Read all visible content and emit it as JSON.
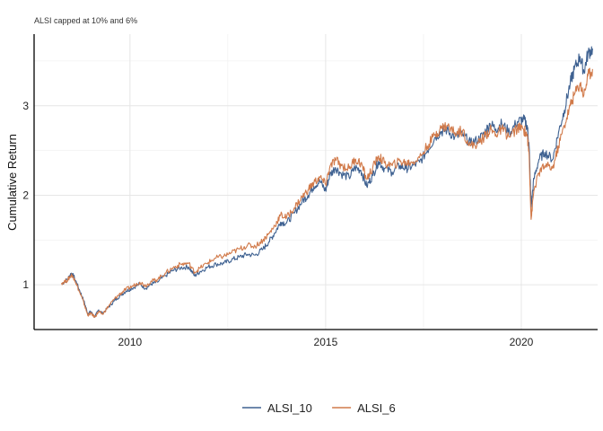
{
  "chart_data": {
    "type": "line",
    "title": "",
    "subtitle": "ALSI capped at 10% and 6%",
    "xlabel": "",
    "ylabel": "Cumulative Return",
    "xlim": [
      2007.55,
      2021.95
    ],
    "ylim": [
      0.5,
      3.8
    ],
    "x_ticks": [
      2010,
      2015,
      2020
    ],
    "x_tick_labels": [
      "2010",
      "2015",
      "2020"
    ],
    "y_ticks": [
      1,
      2,
      3
    ],
    "y_tick_labels": [
      "1",
      "2",
      "3"
    ],
    "grid": true,
    "legend_position": "bottom",
    "series": [
      {
        "name": "ALSI_10",
        "color": "#3e6191",
        "points": [
          [
            2008.25,
            1.01
          ],
          [
            2008.4,
            1.06
          ],
          [
            2008.5,
            1.13
          ],
          [
            2008.58,
            1.08
          ],
          [
            2008.7,
            0.95
          ],
          [
            2008.82,
            0.82
          ],
          [
            2008.92,
            0.68
          ],
          [
            2009.0,
            0.7
          ],
          [
            2009.1,
            0.64
          ],
          [
            2009.2,
            0.72
          ],
          [
            2009.3,
            0.68
          ],
          [
            2009.45,
            0.75
          ],
          [
            2009.6,
            0.82
          ],
          [
            2009.75,
            0.88
          ],
          [
            2009.9,
            0.93
          ],
          [
            2010.05,
            0.96
          ],
          [
            2010.25,
            1.01
          ],
          [
            2010.4,
            0.96
          ],
          [
            2010.55,
            1.01
          ],
          [
            2010.7,
            1.03
          ],
          [
            2010.9,
            1.1
          ],
          [
            2011.1,
            1.16
          ],
          [
            2011.3,
            1.19
          ],
          [
            2011.5,
            1.2
          ],
          [
            2011.65,
            1.1
          ],
          [
            2011.8,
            1.15
          ],
          [
            2012.0,
            1.2
          ],
          [
            2012.2,
            1.23
          ],
          [
            2012.4,
            1.24
          ],
          [
            2012.6,
            1.28
          ],
          [
            2012.8,
            1.31
          ],
          [
            2013.0,
            1.34
          ],
          [
            2013.2,
            1.33
          ],
          [
            2013.4,
            1.4
          ],
          [
            2013.55,
            1.48
          ],
          [
            2013.7,
            1.58
          ],
          [
            2013.85,
            1.7
          ],
          [
            2014.0,
            1.69
          ],
          [
            2014.2,
            1.8
          ],
          [
            2014.4,
            1.93
          ],
          [
            2014.55,
            2.0
          ],
          [
            2014.7,
            2.1
          ],
          [
            2014.85,
            2.16
          ],
          [
            2015.0,
            2.05
          ],
          [
            2015.1,
            2.22
          ],
          [
            2015.25,
            2.31
          ],
          [
            2015.4,
            2.24
          ],
          [
            2015.6,
            2.2
          ],
          [
            2015.75,
            2.31
          ],
          [
            2015.9,
            2.28
          ],
          [
            2016.05,
            2.1
          ],
          [
            2016.2,
            2.22
          ],
          [
            2016.35,
            2.38
          ],
          [
            2016.5,
            2.3
          ],
          [
            2016.7,
            2.26
          ],
          [
            2016.9,
            2.33
          ],
          [
            2017.05,
            2.3
          ],
          [
            2017.2,
            2.32
          ],
          [
            2017.4,
            2.37
          ],
          [
            2017.6,
            2.5
          ],
          [
            2017.8,
            2.65
          ],
          [
            2017.95,
            2.71
          ],
          [
            2018.1,
            2.73
          ],
          [
            2018.3,
            2.65
          ],
          [
            2018.5,
            2.68
          ],
          [
            2018.7,
            2.58
          ],
          [
            2018.9,
            2.62
          ],
          [
            2019.05,
            2.69
          ],
          [
            2019.2,
            2.8
          ],
          [
            2019.35,
            2.74
          ],
          [
            2019.5,
            2.8
          ],
          [
            2019.7,
            2.7
          ],
          [
            2019.9,
            2.82
          ],
          [
            2020.05,
            2.85
          ],
          [
            2020.15,
            2.78
          ],
          [
            2020.2,
            2.55
          ],
          [
            2020.25,
            1.87
          ],
          [
            2020.32,
            2.18
          ],
          [
            2020.45,
            2.4
          ],
          [
            2020.6,
            2.48
          ],
          [
            2020.8,
            2.4
          ],
          [
            2020.95,
            2.7
          ],
          [
            2021.1,
            2.95
          ],
          [
            2021.25,
            3.25
          ],
          [
            2021.35,
            3.4
          ],
          [
            2021.5,
            3.55
          ],
          [
            2021.6,
            3.38
          ],
          [
            2021.7,
            3.58
          ],
          [
            2021.82,
            3.64
          ]
        ]
      },
      {
        "name": "ALSI_6",
        "color": "#d17a4a",
        "points": [
          [
            2008.25,
            1.02
          ],
          [
            2008.4,
            1.05
          ],
          [
            2008.5,
            1.11
          ],
          [
            2008.58,
            1.07
          ],
          [
            2008.7,
            0.93
          ],
          [
            2008.82,
            0.8
          ],
          [
            2008.92,
            0.66
          ],
          [
            2009.0,
            0.68
          ],
          [
            2009.1,
            0.64
          ],
          [
            2009.2,
            0.7
          ],
          [
            2009.3,
            0.67
          ],
          [
            2009.45,
            0.76
          ],
          [
            2009.6,
            0.84
          ],
          [
            2009.75,
            0.9
          ],
          [
            2009.9,
            0.95
          ],
          [
            2010.05,
            0.98
          ],
          [
            2010.25,
            1.03
          ],
          [
            2010.4,
            0.99
          ],
          [
            2010.55,
            1.04
          ],
          [
            2010.7,
            1.06
          ],
          [
            2010.9,
            1.13
          ],
          [
            2011.1,
            1.19
          ],
          [
            2011.3,
            1.23
          ],
          [
            2011.5,
            1.24
          ],
          [
            2011.65,
            1.14
          ],
          [
            2011.8,
            1.19
          ],
          [
            2012.0,
            1.25
          ],
          [
            2012.2,
            1.3
          ],
          [
            2012.4,
            1.32
          ],
          [
            2012.6,
            1.36
          ],
          [
            2012.8,
            1.4
          ],
          [
            2013.0,
            1.44
          ],
          [
            2013.2,
            1.43
          ],
          [
            2013.4,
            1.5
          ],
          [
            2013.55,
            1.57
          ],
          [
            2013.7,
            1.66
          ],
          [
            2013.85,
            1.78
          ],
          [
            2014.0,
            1.75
          ],
          [
            2014.2,
            1.86
          ],
          [
            2014.4,
            1.98
          ],
          [
            2014.55,
            2.06
          ],
          [
            2014.7,
            2.14
          ],
          [
            2014.85,
            2.2
          ],
          [
            2015.0,
            2.12
          ],
          [
            2015.1,
            2.3
          ],
          [
            2015.25,
            2.4
          ],
          [
            2015.4,
            2.33
          ],
          [
            2015.6,
            2.3
          ],
          [
            2015.75,
            2.4
          ],
          [
            2015.9,
            2.36
          ],
          [
            2016.05,
            2.18
          ],
          [
            2016.2,
            2.3
          ],
          [
            2016.35,
            2.44
          ],
          [
            2016.5,
            2.36
          ],
          [
            2016.7,
            2.33
          ],
          [
            2016.9,
            2.38
          ],
          [
            2017.05,
            2.36
          ],
          [
            2017.2,
            2.37
          ],
          [
            2017.4,
            2.42
          ],
          [
            2017.6,
            2.55
          ],
          [
            2017.8,
            2.68
          ],
          [
            2017.95,
            2.75
          ],
          [
            2018.1,
            2.78
          ],
          [
            2018.3,
            2.7
          ],
          [
            2018.5,
            2.72
          ],
          [
            2018.7,
            2.55
          ],
          [
            2018.9,
            2.58
          ],
          [
            2019.05,
            2.65
          ],
          [
            2019.2,
            2.73
          ],
          [
            2019.35,
            2.68
          ],
          [
            2019.5,
            2.74
          ],
          [
            2019.7,
            2.65
          ],
          [
            2019.9,
            2.75
          ],
          [
            2020.05,
            2.74
          ],
          [
            2020.15,
            2.68
          ],
          [
            2020.2,
            2.45
          ],
          [
            2020.25,
            1.73
          ],
          [
            2020.32,
            2.05
          ],
          [
            2020.45,
            2.25
          ],
          [
            2020.6,
            2.33
          ],
          [
            2020.8,
            2.3
          ],
          [
            2020.95,
            2.55
          ],
          [
            2021.1,
            2.78
          ],
          [
            2021.25,
            3.0
          ],
          [
            2021.35,
            3.12
          ],
          [
            2021.5,
            3.25
          ],
          [
            2021.6,
            3.12
          ],
          [
            2021.7,
            3.33
          ],
          [
            2021.82,
            3.41
          ]
        ]
      }
    ]
  }
}
